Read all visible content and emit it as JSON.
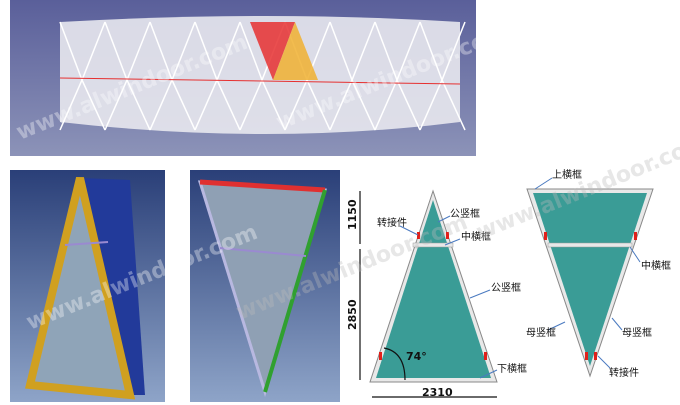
{
  "watermark": "www.alwindoor.com",
  "colors": {
    "glass": "#3a9c96",
    "frame": "#d8d8d8",
    "connector": "#e0201a",
    "panel_bg": "#4a5a8a",
    "lattice_red": "#e63030",
    "lattice_yellow": "#f0b030"
  },
  "diagram_left": {
    "dim_top": "1150",
    "dim_bottom": "2850",
    "dim_base": "2310",
    "angle": "74°",
    "labels": [
      "转接件",
      "公竖框",
      "中横框",
      "公竖框",
      "下横框"
    ]
  },
  "diagram_right": {
    "labels": [
      "上横框",
      "中横框",
      "母竖框",
      "母竖框",
      "转接件"
    ]
  }
}
